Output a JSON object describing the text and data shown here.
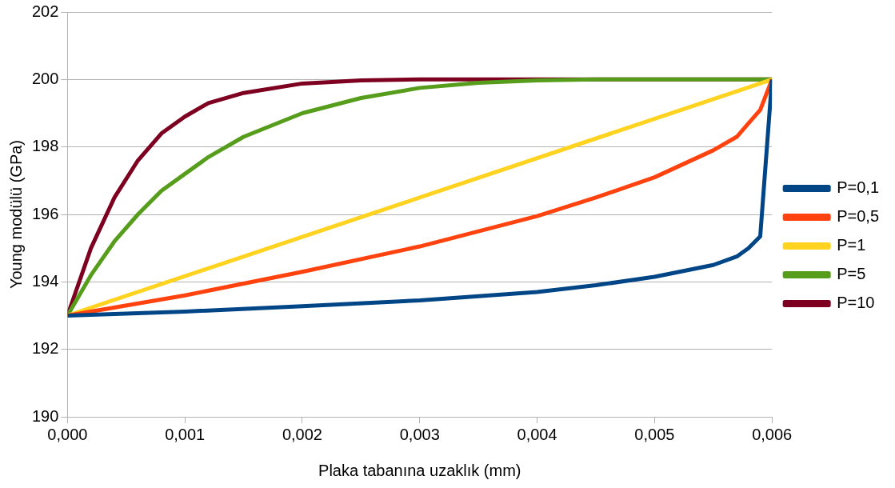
{
  "chart_data": {
    "type": "line",
    "xlabel": "Plaka tabanına uzaklık (mm)",
    "ylabel": "Young modülü (GPa)",
    "xlim": [
      0,
      0.006
    ],
    "xticks": [
      {
        "value": 0,
        "label": "0,000"
      },
      {
        "value": 0.001,
        "label": "0,001"
      },
      {
        "value": 0.002,
        "label": "0,002"
      },
      {
        "value": 0.003,
        "label": "0,003"
      },
      {
        "value": 0.004,
        "label": "0,004"
      },
      {
        "value": 0.005,
        "label": "0,005"
      },
      {
        "value": 0.006,
        "label": "0,006"
      }
    ],
    "ylim": [
      190,
      202
    ],
    "yticks": [
      190,
      192,
      194,
      196,
      198,
      200,
      202
    ],
    "grid": "y",
    "legend": "right",
    "marker": "none",
    "line_style": "solid",
    "series": [
      {
        "name": "P=0,1",
        "color": "#004586",
        "x": [
          0,
          0.001,
          0.002,
          0.003,
          0.004,
          0.0045,
          0.005,
          0.0055,
          0.0057,
          0.0058,
          0.0059,
          0.006
        ],
        "values": [
          193,
          193.12,
          193.28,
          193.45,
          193.7,
          193.9,
          194.15,
          194.5,
          194.75,
          195.0,
          195.35,
          200
        ]
      },
      {
        "name": "P=0,5",
        "color": "#ff420e",
        "x": [
          0,
          0.001,
          0.002,
          0.003,
          0.004,
          0.0045,
          0.005,
          0.0055,
          0.0057,
          0.0058,
          0.0059,
          0.006
        ],
        "values": [
          193,
          193.6,
          194.3,
          195.05,
          195.95,
          196.5,
          197.1,
          197.9,
          198.3,
          198.7,
          199.1,
          200
        ]
      },
      {
        "name": "P=1",
        "color": "#ffd320",
        "x": [
          0,
          0.003,
          0.006
        ],
        "values": [
          193,
          196.5,
          200
        ]
      },
      {
        "name": "P=5",
        "color": "#579d1c",
        "x": [
          0,
          0.0002,
          0.0004,
          0.0006,
          0.0008,
          0.001,
          0.0012,
          0.0015,
          0.002,
          0.0025,
          0.003,
          0.0035,
          0.004,
          0.0045,
          0.006
        ],
        "values": [
          193,
          194.2,
          195.2,
          196.0,
          196.7,
          197.2,
          197.7,
          198.3,
          199.0,
          199.45,
          199.75,
          199.9,
          199.97,
          200,
          200
        ]
      },
      {
        "name": "P=10",
        "color": "#7e0021",
        "x": [
          0,
          0.0002,
          0.0004,
          0.0006,
          0.0008,
          0.001,
          0.0012,
          0.0015,
          0.002,
          0.0025,
          0.003,
          0.006
        ],
        "values": [
          193,
          195.0,
          196.5,
          197.6,
          198.4,
          198.9,
          199.3,
          199.6,
          199.88,
          199.97,
          200,
          200
        ]
      }
    ]
  }
}
